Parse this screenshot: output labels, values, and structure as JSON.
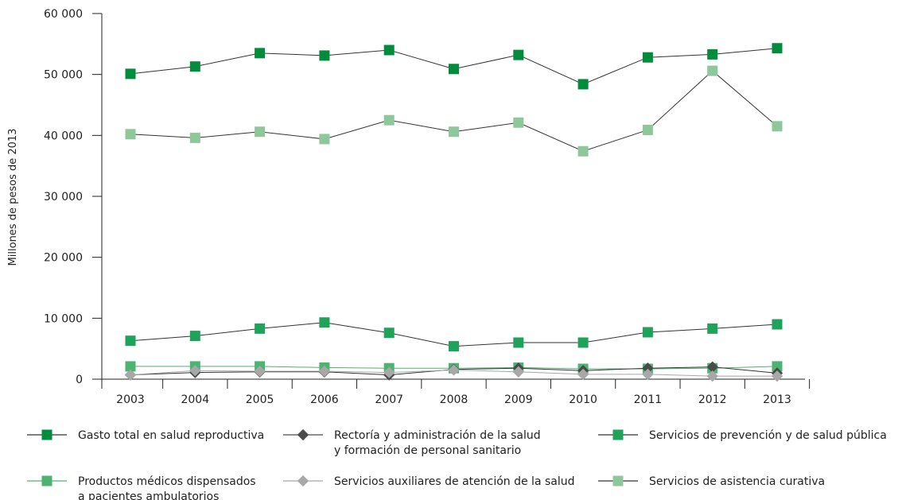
{
  "chart_data": {
    "type": "line",
    "title": "",
    "xlabel": "",
    "ylabel": "Millones de pesos de 2013",
    "x": [
      "2003",
      "2004",
      "2005",
      "2006",
      "2007",
      "2008",
      "2009",
      "2010",
      "2011",
      "2012",
      "2013"
    ],
    "ylim": [
      0,
      60000
    ],
    "yticks": [
      0,
      10000,
      20000,
      30000,
      40000,
      50000,
      60000
    ],
    "ytick_labels": [
      "0",
      "10 000",
      "20 000",
      "30 000",
      "40 000",
      "50 000",
      "60 000"
    ],
    "grid": false,
    "legend_position": "bottom",
    "series": [
      {
        "name": "Gasto total en salud reproductiva",
        "marker": "square",
        "color": "#008c3c",
        "values": [
          50100,
          51300,
          53500,
          53100,
          54000,
          50900,
          53200,
          48400,
          52800,
          53300,
          54300
        ]
      },
      {
        "name": "Rectoría y administración de la salud y formación de personal sanitario",
        "marker": "diamond",
        "color": "#4a4a4a",
        "values": [
          700,
          1100,
          1200,
          1200,
          700,
          1600,
          1800,
          1400,
          1800,
          2000,
          1000
        ]
      },
      {
        "name": "Servicios de prevención y de salud pública",
        "marker": "square",
        "color": "#1fa25a",
        "values": [
          6300,
          7100,
          8300,
          9300,
          7600,
          5400,
          6000,
          6000,
          7700,
          8300,
          9000
        ]
      },
      {
        "name": "Productos médicos dispensados a pacientes ambulatorios",
        "marker": "square",
        "color": "#4db370",
        "values": [
          2100,
          2100,
          2100,
          1900,
          1800,
          1800,
          1900,
          1700,
          1700,
          1800,
          2100
        ]
      },
      {
        "name": "Servicios auxiliares de atención de la salud",
        "marker": "diamond",
        "color": "#a8a8a8",
        "values": [
          700,
          1400,
          1300,
          1300,
          1100,
          1500,
          1200,
          800,
          800,
          500,
          500
        ]
      },
      {
        "name": "Servicios de asistencia curativa",
        "marker": "square",
        "color": "#8ec79a",
        "values": [
          40200,
          39600,
          40600,
          39400,
          42500,
          40600,
          42100,
          37400,
          40900,
          50600,
          41500
        ]
      }
    ],
    "legend_rows": [
      [
        {
          "series": 0,
          "lines": [
            "Gasto total en salud reproductiva"
          ]
        },
        {
          "series": 1,
          "lines": [
            "Rectoría y administración de la salud",
            "y formación de personal sanitario"
          ]
        },
        {
          "series": 2,
          "lines": [
            "Servicios de prevención y de salud pública"
          ]
        }
      ],
      [
        {
          "series": 3,
          "lines": [
            "Productos médicos dispensados",
            "a pacientes ambulatorios"
          ]
        },
        {
          "series": 4,
          "lines": [
            "Servicios auxiliares de atención de la salud"
          ]
        },
        {
          "series": 5,
          "lines": [
            "Servicios de asistencia curativa"
          ]
        }
      ]
    ]
  }
}
